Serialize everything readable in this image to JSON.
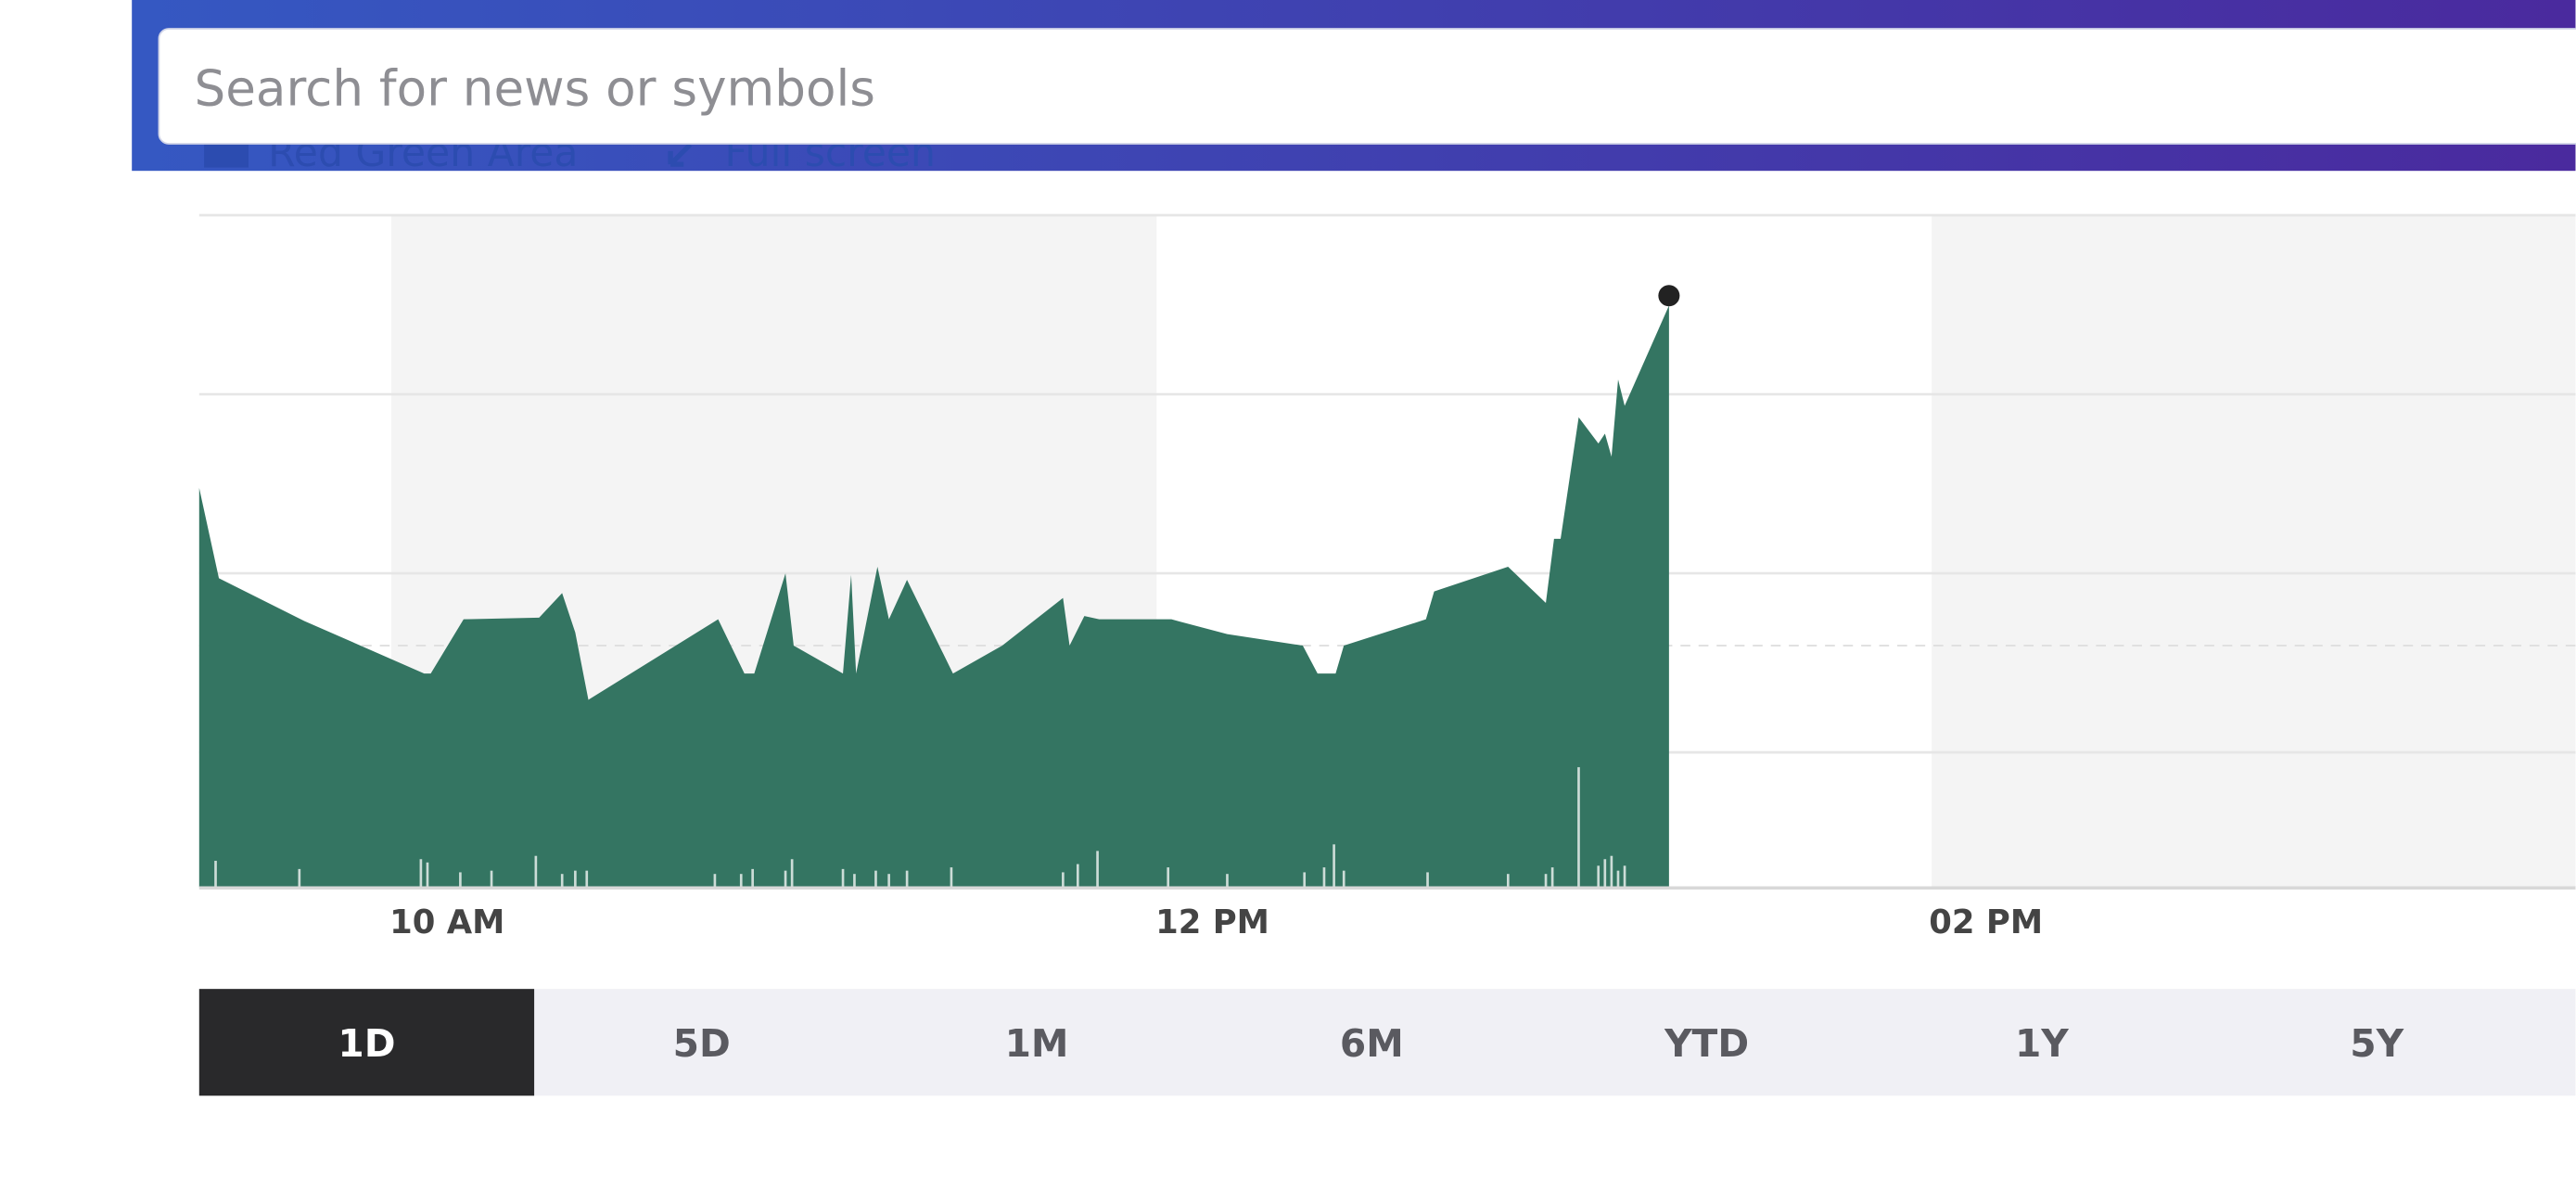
{
  "search": {
    "placeholder": "Search for news or symbols"
  },
  "chart_controls": [
    "Red Green Area",
    "Full screen"
  ],
  "time_labels": [
    "10 AM",
    "12 PM",
    "02 PM"
  ],
  "ranges": [
    "1D",
    "5D",
    "1M",
    "6M",
    "YTD",
    "1Y",
    "5Y"
  ],
  "selected_range": "1D"
}
